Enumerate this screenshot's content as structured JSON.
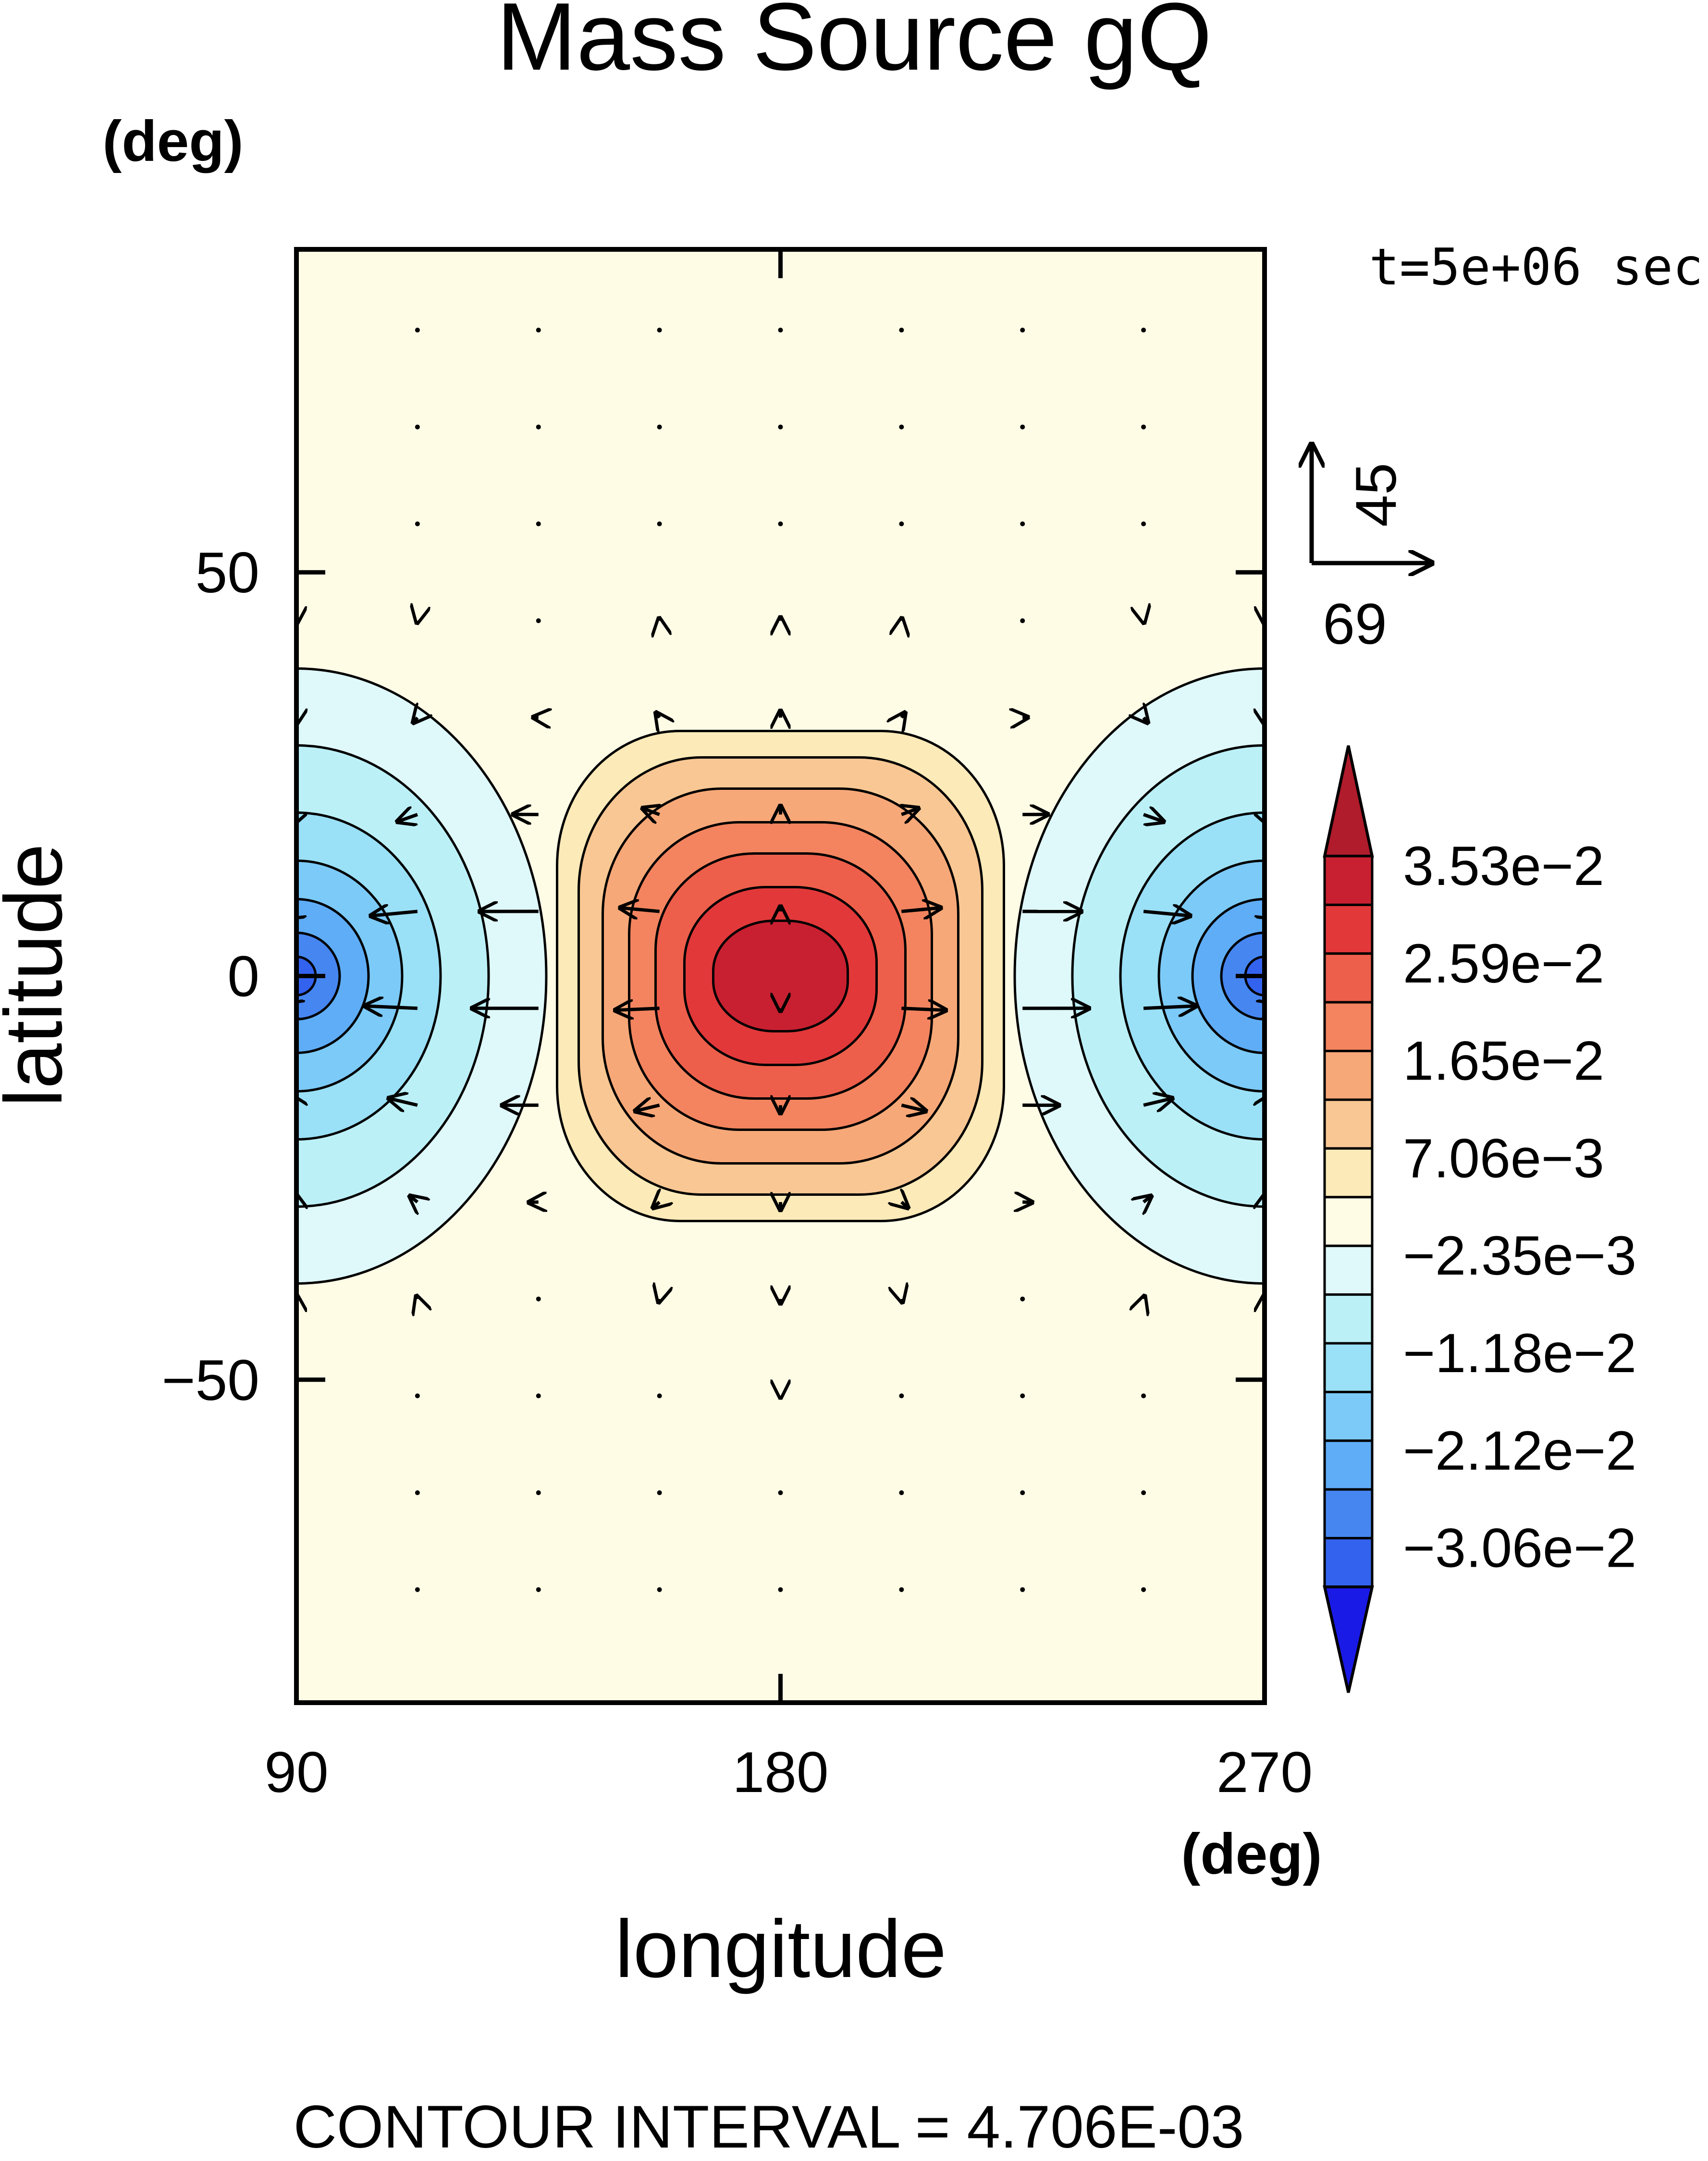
{
  "chart_data": {
    "type": "contour",
    "title": "Mass Source gQ",
    "time_label": "t=5e+06 sec",
    "xlabel": "longitude",
    "ylabel": "latitude",
    "x_unit": "(deg)",
    "y_unit": "(deg)",
    "xlim": [
      90,
      270
    ],
    "ylim": [
      -90,
      90
    ],
    "xticks": [
      90,
      180,
      270
    ],
    "yticks": [
      50,
      0,
      -50
    ],
    "grid": false,
    "contour_interval_text": "CONTOUR INTERVAL = 4.706E-03",
    "contour_interval": 0.004706,
    "colorbar": {
      "placement": "right",
      "labels": [
        "3.53e-2",
        "2.59e-2",
        "1.65e-2",
        "7.06e-3",
        "-2.35e-3",
        "-1.18e-2",
        "-2.12e-2",
        "-3.06e-2"
      ],
      "colors": [
        "#E8322F",
        "#F26C4E",
        "#F9A57A",
        "#FDE8B8",
        "#EFFBFC",
        "#B8EEF6",
        "#55BEF4",
        "#2B63EB"
      ],
      "bins": [
        "#3363EE",
        "#4686F1",
        "#5FADF7",
        "#7CCAF8",
        "#9AE0F6",
        "#BCF0F7",
        "#DFF8FA",
        "#FFFCE6",
        "#FCEAB8",
        "#F8C793",
        "#F7A878",
        "#F3845F",
        "#ED5F4B",
        "#E2383A",
        "#C82030"
      ],
      "extend_low_color": "#1A1AE6",
      "extend_high_color": "#B01C2B"
    },
    "field": {
      "description_free": true,
      "positive_center": {
        "lon": 180,
        "lat": 0,
        "peak": 0.0424
      },
      "negative_centers": [
        {
          "lon": 90,
          "lat": 0,
          "peak": -0.033
        },
        {
          "lon": 270,
          "lat": 0,
          "peak": -0.035
        }
      ]
    },
    "vector_reference": {
      "x_value": "69",
      "y_value": "45"
    }
  },
  "colors": {
    "background_field": "#FFFCE6",
    "positive_accent": "#C82030",
    "negative_accent": "#3363EE"
  }
}
